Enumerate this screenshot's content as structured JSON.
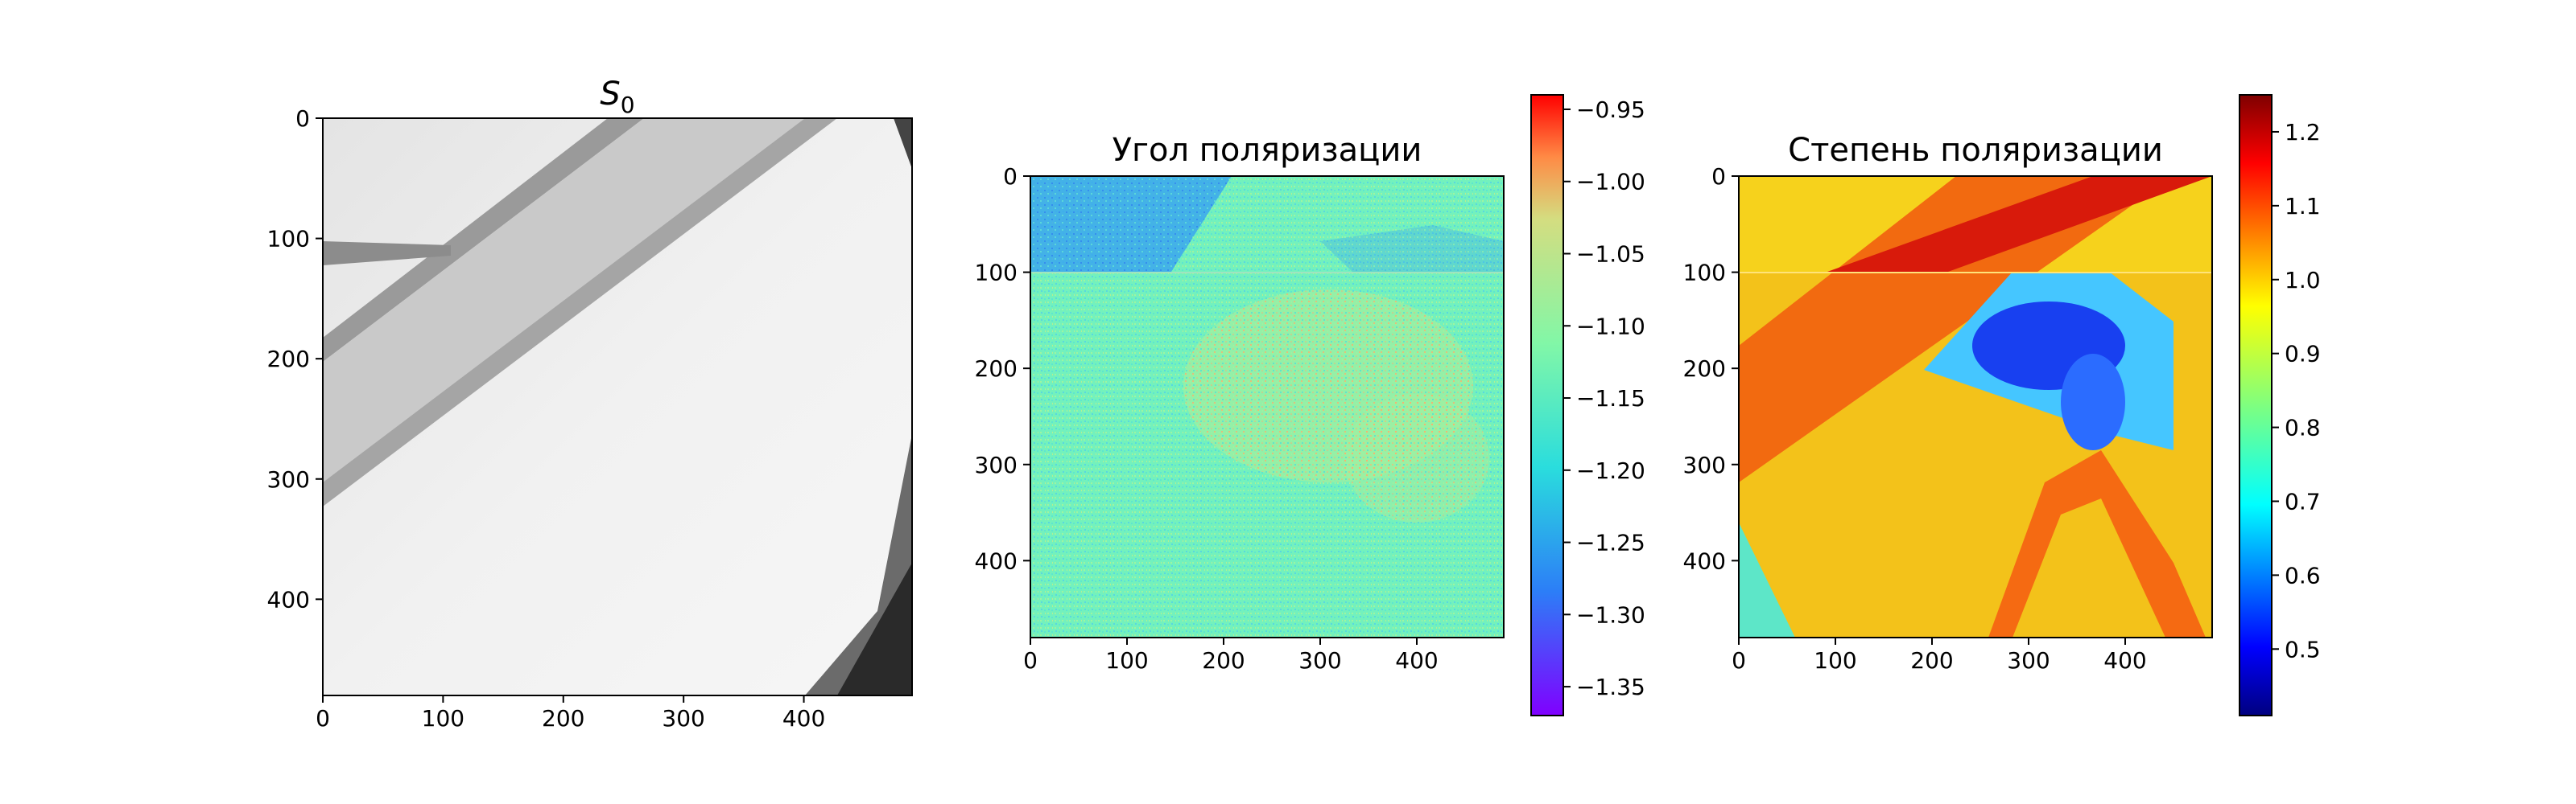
{
  "chart_data": [
    {
      "type": "heatmap",
      "title": "S",
      "title_subscript": "0",
      "colormap": "gray",
      "xlim": [
        0,
        490
      ],
      "ylim": [
        480,
        0
      ],
      "xticks": [
        "0",
        "100",
        "200",
        "300",
        "400"
      ],
      "yticks": [
        "0",
        "100",
        "200",
        "300",
        "400"
      ],
      "colorbar": null
    },
    {
      "type": "heatmap",
      "title": "Угол поляризации",
      "colormap": "rainbow",
      "xlim": [
        0,
        490
      ],
      "ylim": [
        480,
        0
      ],
      "xticks": [
        "0",
        "100",
        "200",
        "300",
        "400"
      ],
      "yticks": [
        "0",
        "100",
        "200",
        "300",
        "400"
      ],
      "colorbar": {
        "range": [
          -1.37,
          -0.94
        ],
        "ticks": [
          "−0.95",
          "−1.00",
          "−1.05",
          "−1.10",
          "−1.15",
          "−1.20",
          "−1.25",
          "−1.30",
          "−1.35"
        ],
        "tick_values": [
          -0.95,
          -1.0,
          -1.05,
          -1.1,
          -1.15,
          -1.2,
          -1.25,
          -1.3,
          -1.35
        ]
      }
    },
    {
      "type": "heatmap",
      "title": "Степень поляризации",
      "colormap": "jet",
      "xlim": [
        0,
        490
      ],
      "ylim": [
        480,
        0
      ],
      "xticks": [
        "0",
        "100",
        "200",
        "300",
        "400"
      ],
      "yticks": [
        "0",
        "100",
        "200",
        "300",
        "400"
      ],
      "colorbar": {
        "range": [
          0.41,
          1.25
        ],
        "ticks": [
          "1.2",
          "1.1",
          "1.0",
          "0.9",
          "0.8",
          "0.7",
          "0.6",
          "0.5"
        ],
        "tick_values": [
          1.2,
          1.1,
          1.0,
          0.9,
          0.8,
          0.7,
          0.6,
          0.5
        ]
      }
    }
  ]
}
